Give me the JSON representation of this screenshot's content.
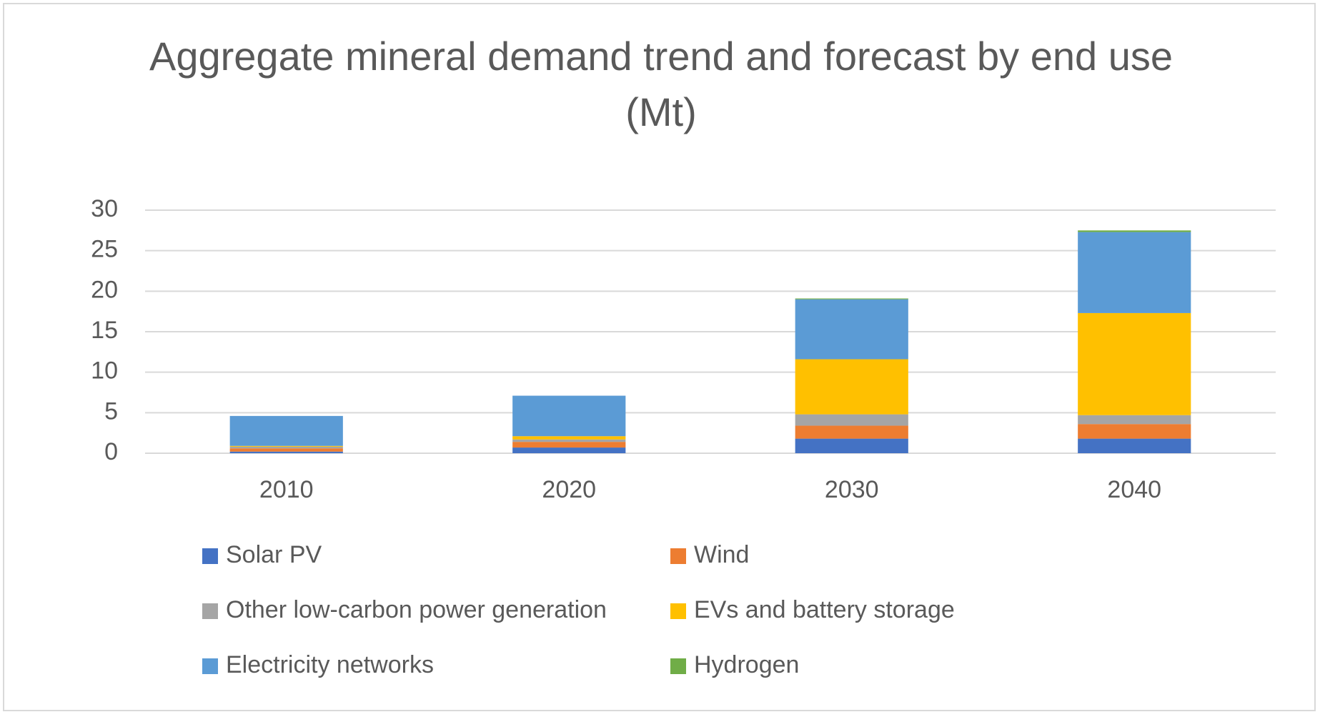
{
  "chart_data": {
    "type": "stacked_bar",
    "title": "Aggregate mineral demand trend and forecast by end use (Mt)",
    "categories": [
      "2010",
      "2020",
      "2030",
      "2040"
    ],
    "series": [
      {
        "name": "Solar PV",
        "color": "#4472c4",
        "values": [
          0.2,
          0.7,
          1.8,
          1.8
        ]
      },
      {
        "name": "Wind",
        "color": "#ed7d31",
        "values": [
          0.4,
          0.7,
          1.6,
          1.8
        ]
      },
      {
        "name": "Other low-carbon power generation",
        "color": "#a5a5a5",
        "values": [
          0.2,
          0.3,
          1.4,
          1.1
        ]
      },
      {
        "name": "EVs and battery storage",
        "color": "#ffc000",
        "values": [
          0.1,
          0.4,
          6.8,
          12.6
        ]
      },
      {
        "name": "Electricity networks",
        "color": "#5b9bd5",
        "values": [
          3.7,
          5.0,
          7.4,
          10.0
        ]
      },
      {
        "name": "Hydrogen",
        "color": "#70ad47",
        "values": [
          0,
          0,
          0.1,
          0.2
        ]
      }
    ],
    "ylim": [
      0,
      30
    ],
    "yticks": [
      0,
      5,
      10,
      15,
      20,
      25,
      30
    ],
    "grid": true
  }
}
